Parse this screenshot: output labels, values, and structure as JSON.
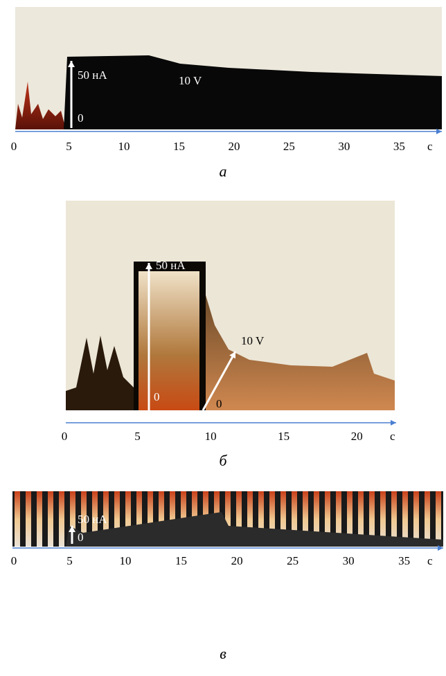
{
  "chart_data": [
    {
      "type": "image",
      "caption": "а",
      "x_label": "с",
      "xlim": [
        0,
        39
      ],
      "xticks": [
        0,
        5,
        10,
        15,
        20,
        25,
        30,
        35
      ],
      "annotations": [
        "50 нА",
        "0",
        "10 V"
      ]
    },
    {
      "type": "image",
      "caption": "б",
      "x_label": "с",
      "xlim": [
        0,
        22.5
      ],
      "xticks": [
        0,
        5,
        10,
        15,
        20
      ],
      "annotations": [
        "50 нА",
        "0",
        "10 V",
        "0"
      ]
    },
    {
      "type": "image",
      "caption": "в",
      "x_label": "с",
      "xlim": [
        0,
        38.5
      ],
      "xticks": [
        0,
        5,
        10,
        15,
        20,
        25,
        30,
        35
      ],
      "annotations": [
        "50 нА",
        "0"
      ]
    }
  ]
}
